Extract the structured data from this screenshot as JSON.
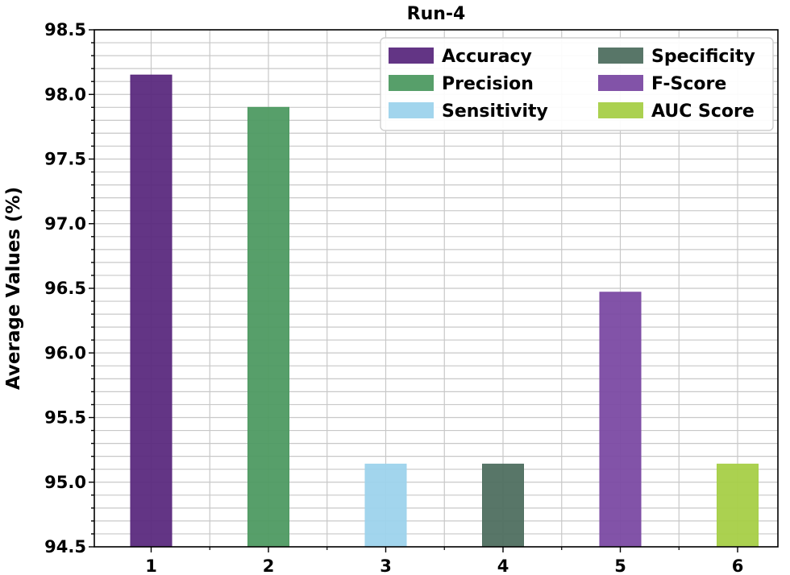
{
  "chart_data": {
    "type": "bar",
    "title": "Run-4",
    "xlabel": "",
    "ylabel": "Average Values (%)",
    "categories": [
      "1",
      "2",
      "3",
      "4",
      "5",
      "6"
    ],
    "series": [
      {
        "name": "Accuracy",
        "color": "#5b2a7e",
        "values": [
          98.15,
          null,
          null,
          null,
          null,
          null
        ]
      },
      {
        "name": "Precision",
        "color": "#4e9a62",
        "values": [
          null,
          97.9,
          null,
          null,
          null,
          null
        ]
      },
      {
        "name": "Sensitivity",
        "color": "#9dd3ec",
        "values": [
          null,
          null,
          95.14,
          null,
          null,
          null
        ]
      },
      {
        "name": "Specificity",
        "color": "#4f6f60",
        "values": [
          null,
          null,
          null,
          95.14,
          null,
          null
        ]
      },
      {
        "name": "F-Score",
        "color": "#7b4aa3",
        "values": [
          null,
          null,
          null,
          null,
          96.47,
          null
        ]
      },
      {
        "name": "AUC Score",
        "color": "#a6cf47",
        "values": [
          null,
          null,
          null,
          null,
          null,
          95.14
        ]
      }
    ],
    "ylim": [
      94.5,
      98.5
    ],
    "yticks": [
      "94.5",
      "95.0",
      "95.5",
      "96.0",
      "96.5",
      "97.0",
      "97.5",
      "98.0",
      "98.5"
    ],
    "grid": true,
    "minor_grid": true,
    "legend": {
      "placement": "top-right",
      "columns": 2
    }
  }
}
